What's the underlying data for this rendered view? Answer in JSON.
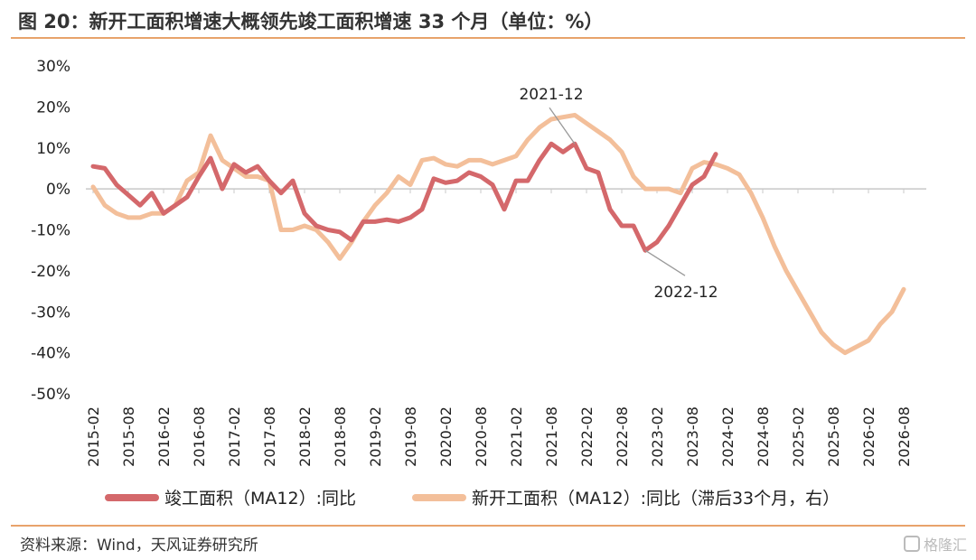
{
  "header": {
    "title": "图 20：新开工面积增速大概领先竣工面积增速 33 个月（单位：%）"
  },
  "footer": {
    "source": "资料来源：Wind，天风证券研究所",
    "watermark": "格隆汇"
  },
  "chart_data": {
    "type": "line",
    "title": "新开工面积增速大概领先竣工面积增速 33 个月（单位：%）",
    "ylim": [
      -50,
      30
    ],
    "yticks": [
      "30%",
      "20%",
      "10%",
      "0%",
      "-10%",
      "-20%",
      "-30%",
      "-40%",
      "-50%"
    ],
    "grid": false,
    "legend_position": "bottom",
    "xtick_labels": [
      "2015-02",
      "2015-08",
      "2016-02",
      "2016-08",
      "2017-02",
      "2017-08",
      "2018-02",
      "2018-08",
      "2019-02",
      "2019-08",
      "2020-02",
      "2020-08",
      "2021-02",
      "2021-08",
      "2022-02",
      "2022-08",
      "2023-02",
      "2023-08",
      "2024-02",
      "2024-08",
      "2025-02",
      "2025-08",
      "2026-02",
      "2026-08"
    ],
    "series": [
      {
        "name": "竣工面积（MA12）:同比",
        "color": "#d4686b",
        "points": [
          [
            "2015-02",
            5.5
          ],
          [
            "2015-04",
            5
          ],
          [
            "2015-06",
            1
          ],
          [
            "2015-08",
            -1.5
          ],
          [
            "2015-10",
            -4
          ],
          [
            "2015-12",
            -1
          ],
          [
            "2016-02",
            -6
          ],
          [
            "2016-04",
            -4
          ],
          [
            "2016-06",
            -2
          ],
          [
            "2016-08",
            3
          ],
          [
            "2016-10",
            7.5
          ],
          [
            "2016-12",
            0
          ],
          [
            "2017-02",
            6
          ],
          [
            "2017-04",
            4
          ],
          [
            "2017-06",
            5.5
          ],
          [
            "2017-08",
            2
          ],
          [
            "2017-10",
            -1
          ],
          [
            "2017-12",
            2
          ],
          [
            "2018-02",
            -6
          ],
          [
            "2018-04",
            -9
          ],
          [
            "2018-06",
            -10
          ],
          [
            "2018-08",
            -10.5
          ],
          [
            "2018-10",
            -12.5
          ],
          [
            "2018-12",
            -8
          ],
          [
            "2019-02",
            -8
          ],
          [
            "2019-04",
            -7.5
          ],
          [
            "2019-06",
            -8
          ],
          [
            "2019-08",
            -7
          ],
          [
            "2019-10",
            -5
          ],
          [
            "2019-12",
            2.5
          ],
          [
            "2020-02",
            1.5
          ],
          [
            "2020-04",
            2
          ],
          [
            "2020-06",
            4
          ],
          [
            "2020-08",
            3
          ],
          [
            "2020-10",
            1
          ],
          [
            "2020-12",
            -5
          ],
          [
            "2021-02",
            2
          ],
          [
            "2021-04",
            2
          ],
          [
            "2021-06",
            7
          ],
          [
            "2021-08",
            11
          ],
          [
            "2021-10",
            9
          ],
          [
            "2021-12",
            11
          ],
          [
            "2022-02",
            5
          ],
          [
            "2022-04",
            4
          ],
          [
            "2022-06",
            -5
          ],
          [
            "2022-08",
            -9
          ],
          [
            "2022-10",
            -9
          ],
          [
            "2022-12",
            -15
          ],
          [
            "2023-02",
            -13
          ],
          [
            "2023-04",
            -9
          ],
          [
            "2023-06",
            -4
          ],
          [
            "2023-08",
            1
          ],
          [
            "2023-10",
            3
          ],
          [
            "2023-12",
            8.5
          ]
        ]
      },
      {
        "name": "新开工面积（MA12）:同比（滞后33个月，右）",
        "color": "#f3bf9a",
        "points": [
          [
            "2015-02",
            0.5
          ],
          [
            "2015-04",
            -4
          ],
          [
            "2015-06",
            -6
          ],
          [
            "2015-08",
            -7
          ],
          [
            "2015-10",
            -7
          ],
          [
            "2015-12",
            -6
          ],
          [
            "2016-02",
            -6
          ],
          [
            "2016-04",
            -4
          ],
          [
            "2016-06",
            2
          ],
          [
            "2016-08",
            4
          ],
          [
            "2016-10",
            13
          ],
          [
            "2016-12",
            7
          ],
          [
            "2017-02",
            5
          ],
          [
            "2017-04",
            3
          ],
          [
            "2017-06",
            3
          ],
          [
            "2017-08",
            2
          ],
          [
            "2017-10",
            -10
          ],
          [
            "2017-12",
            -10
          ],
          [
            "2018-02",
            -9
          ],
          [
            "2018-04",
            -10
          ],
          [
            "2018-06",
            -13
          ],
          [
            "2018-08",
            -17
          ],
          [
            "2018-10",
            -13
          ],
          [
            "2018-12",
            -8
          ],
          [
            "2019-02",
            -4
          ],
          [
            "2019-04",
            -1
          ],
          [
            "2019-06",
            3
          ],
          [
            "2019-08",
            1
          ],
          [
            "2019-10",
            7
          ],
          [
            "2019-12",
            7.5
          ],
          [
            "2020-02",
            6
          ],
          [
            "2020-04",
            5.5
          ],
          [
            "2020-06",
            7
          ],
          [
            "2020-08",
            7
          ],
          [
            "2020-10",
            6
          ],
          [
            "2020-12",
            7
          ],
          [
            "2021-02",
            8
          ],
          [
            "2021-04",
            12
          ],
          [
            "2021-06",
            15
          ],
          [
            "2021-08",
            17
          ],
          [
            "2021-10",
            17.5
          ],
          [
            "2021-12",
            18
          ],
          [
            "2022-02",
            16
          ],
          [
            "2022-04",
            14
          ],
          [
            "2022-06",
            12
          ],
          [
            "2022-08",
            9
          ],
          [
            "2022-10",
            3
          ],
          [
            "2022-12",
            0
          ],
          [
            "2023-02",
            0
          ],
          [
            "2023-04",
            0
          ],
          [
            "2023-06",
            -1
          ],
          [
            "2023-08",
            5
          ],
          [
            "2023-10",
            6.5
          ],
          [
            "2023-12",
            6
          ],
          [
            "2024-02",
            5
          ],
          [
            "2024-04",
            3.5
          ],
          [
            "2024-06",
            -1
          ],
          [
            "2024-08",
            -7
          ],
          [
            "2024-10",
            -14
          ],
          [
            "2024-12",
            -20
          ],
          [
            "2025-02",
            -25
          ],
          [
            "2025-04",
            -30
          ],
          [
            "2025-06",
            -35
          ],
          [
            "2025-08",
            -38
          ],
          [
            "2025-10",
            -40
          ],
          [
            "2025-12",
            -38.5
          ],
          [
            "2026-02",
            -37
          ],
          [
            "2026-04",
            -33
          ],
          [
            "2026-06",
            -30
          ],
          [
            "2026-08",
            -24.5
          ]
        ]
      }
    ],
    "annotations": [
      {
        "label": "2021-12",
        "target_x": "2021-12",
        "series": 0
      },
      {
        "label": "2022-12",
        "target_x": "2022-12",
        "series": 0
      }
    ]
  }
}
